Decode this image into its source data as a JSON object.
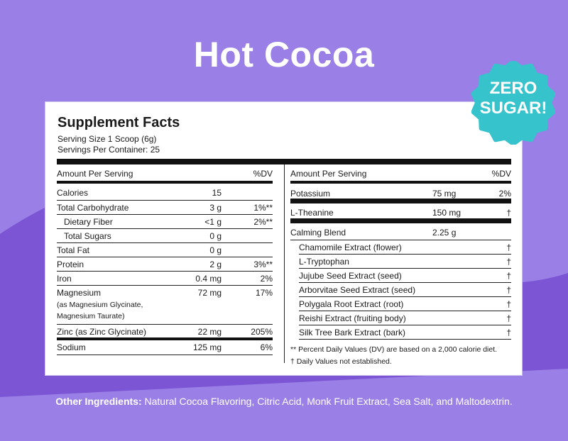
{
  "title": "Hot Cocoa",
  "badge": {
    "line1": "ZERO",
    "line2": "SUGAR!",
    "color": "#36c3cc"
  },
  "colors": {
    "background": "#9a7fe6",
    "swoosh": "#7b55d3"
  },
  "facts": {
    "heading": "Supplement Facts",
    "serving_size": "Serving Size 1 Scoop (6g)",
    "servings_per_container": "Servings Per Container: 25",
    "left_header": {
      "label": "Amount Per Serving",
      "dv": "%DV"
    },
    "right_header": {
      "label": "Amount Per Serving",
      "dv": "%DV"
    },
    "left_rows": [
      {
        "name": "Calories",
        "amount": "15",
        "dv": ""
      },
      {
        "name": "Total Carbohydrate",
        "amount": "3 g",
        "dv": "1%**"
      },
      {
        "name": "Dietary Fiber",
        "amount": "<1 g",
        "dv": "2%**"
      },
      {
        "name": "Total Sugars",
        "amount": "0 g",
        "dv": ""
      },
      {
        "name": "Total Fat",
        "amount": "0 g",
        "dv": ""
      },
      {
        "name": "Protein",
        "amount": "2 g",
        "dv": "3%**"
      },
      {
        "name": "Iron",
        "amount": "0.4 mg",
        "dv": "2%"
      },
      {
        "name": "Magnesium",
        "amount": "72 mg",
        "dv": "17%",
        "note1": "(as Magnesium Glycinate,",
        "note2": "Magnesium Taurate)"
      },
      {
        "name": "Zinc (as Zinc Glycinate)",
        "amount": "22 mg",
        "dv": "205%"
      },
      {
        "name": "Sodium",
        "amount": "125 mg",
        "dv": "6%"
      }
    ],
    "right_rows": [
      {
        "name": "Potassium",
        "amount": "75 mg",
        "dv": "2%"
      },
      {
        "name": "L-Theanine",
        "amount": "150 mg",
        "dv": "†"
      },
      {
        "name": "Calming Blend",
        "amount": "2.25 g",
        "dv": ""
      }
    ],
    "blend_items": [
      {
        "name": "Chamomile Extract (flower)",
        "dv": "†"
      },
      {
        "name": "L-Tryptophan",
        "dv": "†"
      },
      {
        "name": "Jujube Seed Extract (seed)",
        "dv": "†"
      },
      {
        "name": "Arborvitae Seed Extract (seed)",
        "dv": "†"
      },
      {
        "name": "Polygala Root Extract (root)",
        "dv": "†"
      },
      {
        "name": "Reishi Extract (fruiting body)",
        "dv": "†"
      },
      {
        "name": "Silk Tree Bark Extract (bark)",
        "dv": "†"
      }
    ],
    "footnote1": "** Percent Daily Values (DV) are based on a 2,000 calorie diet.",
    "footnote2": "† Daily Values not established."
  },
  "other_ingredients": {
    "label": "Other Ingredients:",
    "text": " Natural Cocoa Flavoring, Citric Acid, Monk Fruit Extract, Sea Salt, and Maltodextrin."
  }
}
